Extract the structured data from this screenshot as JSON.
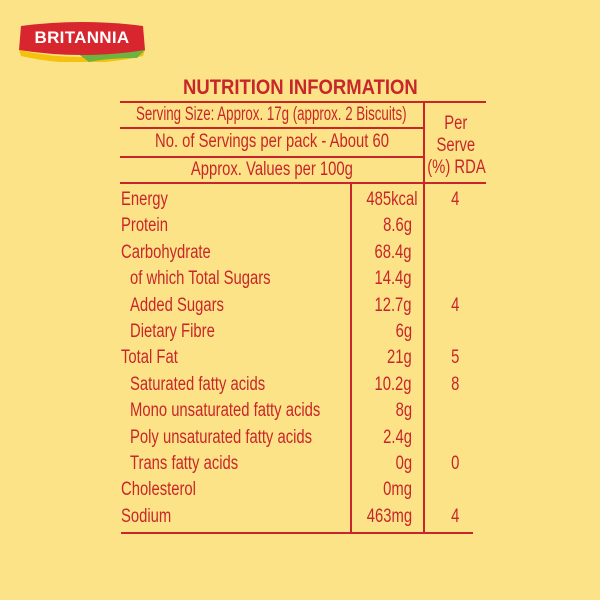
{
  "brand": {
    "logo_text": "BRITANNIA",
    "colors": {
      "red": "#d7262d",
      "yellow": "#f4c20d",
      "green": "#6cb33f"
    }
  },
  "title": "NUTRITION INFORMATION",
  "header": {
    "serving_size": "Serving Size: Approx. 17g (approx. 2 Biscuits)",
    "servings_per_pack": "No. of Servings per pack - About 60",
    "values_per": "Approx. Values per 100g",
    "rda_line1": "Per",
    "rda_line2": "Serve",
    "rda_line3": "(%) RDA"
  },
  "rows": [
    {
      "name": "Energy",
      "value": "485kcal",
      "rda": "4",
      "indent": false
    },
    {
      "name": "Protein",
      "value": "8.6g",
      "rda": "",
      "indent": false
    },
    {
      "name": "Carbohydrate",
      "value": "68.4g",
      "rda": "",
      "indent": false
    },
    {
      "name": "of which Total Sugars",
      "value": "14.4g",
      "rda": "",
      "indent": true
    },
    {
      "name": "Added Sugars",
      "value": "12.7g",
      "rda": "4",
      "indent": true
    },
    {
      "name": "Dietary Fibre",
      "value": "6g",
      "rda": "",
      "indent": true
    },
    {
      "name": "Total Fat",
      "value": "21g",
      "rda": "5",
      "indent": false
    },
    {
      "name": "Saturated fatty acids",
      "value": "10.2g",
      "rda": "8",
      "indent": true
    },
    {
      "name": "Mono unsaturated fatty acids",
      "value": "8g",
      "rda": "",
      "indent": true
    },
    {
      "name": "Poly unsaturated fatty acids",
      "value": "2.4g",
      "rda": "",
      "indent": true
    },
    {
      "name": "Trans fatty acids",
      "value": "0g",
      "rda": "0",
      "indent": true
    },
    {
      "name": "Cholesterol",
      "value": "0mg",
      "rda": "",
      "indent": false
    },
    {
      "name": "Sodium",
      "value": "463mg",
      "rda": "4",
      "indent": false
    }
  ]
}
